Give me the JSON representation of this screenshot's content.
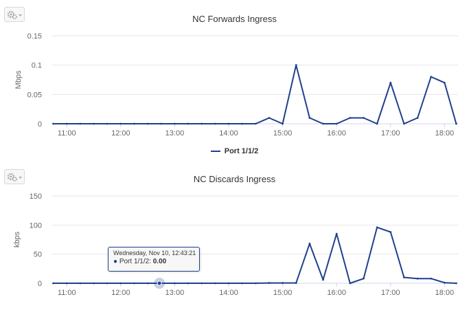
{
  "charts": [
    {
      "title": "NC Forwards Ingress",
      "ylabel": "Mbps",
      "legend": "Port 1/1/2"
    },
    {
      "title": "NC Discards Ingress",
      "ylabel": "kbps",
      "tooltip": {
        "date": "Wednesday, Nov 10, 12:43:21",
        "series": "Port 1/1/2",
        "value": "0.00"
      }
    }
  ],
  "chart_data": [
    {
      "type": "line",
      "title": "NC Forwards Ingress",
      "xlabel": "",
      "ylabel": "Mbps",
      "x_ticks": [
        "11:00",
        "12:00",
        "13:00",
        "14:00",
        "15:00",
        "16:00",
        "17:00",
        "18:00"
      ],
      "y_ticks": [
        "0",
        "0.05",
        "0.1",
        "0.15"
      ],
      "ylim": [
        0,
        0.15
      ],
      "xlim": [
        "10:43",
        "18:15"
      ],
      "grid": "horizontal",
      "legend_position": "bottom-center",
      "color": "#1f3f8c",
      "series": [
        {
          "name": "Port 1/1/2",
          "x": [
            "10:45",
            "11:00",
            "11:15",
            "11:30",
            "11:45",
            "12:00",
            "12:15",
            "12:30",
            "12:45",
            "13:00",
            "13:15",
            "13:30",
            "13:45",
            "14:00",
            "14:15",
            "14:30",
            "14:45",
            "15:00",
            "15:15",
            "15:30",
            "15:45",
            "16:00",
            "16:15",
            "16:30",
            "16:45",
            "17:00",
            "17:15",
            "17:30",
            "17:45",
            "18:00",
            "18:13"
          ],
          "values": [
            0,
            0,
            0,
            0,
            0,
            0,
            0,
            0,
            0,
            0,
            0,
            0,
            0,
            0,
            0,
            0,
            0.01,
            0,
            0.1,
            0.01,
            0,
            0,
            0.01,
            0.01,
            0,
            0.07,
            0,
            0.01,
            0.08,
            0.07,
            0
          ]
        }
      ]
    },
    {
      "type": "line",
      "title": "NC Discards Ingress",
      "xlabel": "",
      "ylabel": "kbps",
      "x_ticks": [
        "11:00",
        "12:00",
        "13:00",
        "14:00",
        "15:00",
        "16:00",
        "17:00",
        "18:00"
      ],
      "y_ticks": [
        "0",
        "50",
        "100",
        "150"
      ],
      "ylim": [
        0,
        150
      ],
      "xlim": [
        "10:43",
        "18:15"
      ],
      "grid": "horizontal",
      "color": "#1f3f8c",
      "series": [
        {
          "name": "Port 1/1/2",
          "x": [
            "10:45",
            "11:00",
            "11:15",
            "11:30",
            "11:45",
            "12:00",
            "12:15",
            "12:30",
            "12:45",
            "13:00",
            "13:15",
            "13:30",
            "13:45",
            "14:00",
            "14:15",
            "14:30",
            "14:45",
            "15:00",
            "15:15",
            "15:30",
            "15:45",
            "16:00",
            "16:15",
            "16:30",
            "16:45",
            "17:00",
            "17:15",
            "17:30",
            "17:45",
            "18:00",
            "18:13"
          ],
          "values": [
            0,
            0,
            0,
            0,
            0,
            0,
            0,
            0,
            0,
            0,
            0,
            0,
            0,
            0,
            0,
            0,
            0.5,
            0.5,
            0.5,
            68,
            6,
            85,
            0,
            8,
            96,
            88,
            10,
            8,
            8,
            1,
            0
          ]
        }
      ]
    }
  ]
}
